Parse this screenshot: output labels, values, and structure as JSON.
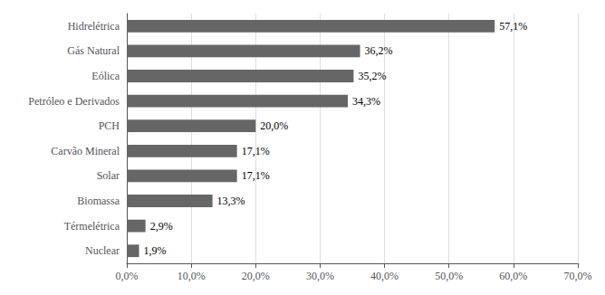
{
  "chart_data": {
    "type": "bar",
    "orientation": "horizontal",
    "categories": [
      "Nuclear",
      "Térmelétrica",
      "Biomassa",
      "Solar",
      "Carvão Mineral",
      "PCH",
      "Petróleo e Derivados",
      "Eólica",
      "Gás Natural",
      "Hidrelétrica"
    ],
    "values": [
      1.9,
      2.9,
      13.3,
      17.1,
      17.1,
      20.0,
      34.3,
      35.2,
      36.2,
      57.1
    ],
    "value_labels": [
      "1,9%",
      "2,9%",
      "13,3%",
      "17,1%",
      "17,1%",
      "20,0%",
      "34,3%",
      "35,2%",
      "36,2%",
      "57,1%"
    ],
    "data_labels": true,
    "color": "#666666",
    "xlim": [
      0,
      70
    ],
    "xticks": [
      {
        "value": 0,
        "label": "0,0%"
      },
      {
        "value": 10,
        "label": "10,0%"
      },
      {
        "value": 20,
        "label": "20,0%"
      },
      {
        "value": 30,
        "label": "30,0%"
      },
      {
        "value": 40,
        "label": "40,0%"
      },
      {
        "value": 50,
        "label": "50,0%"
      },
      {
        "value": 60,
        "label": "60,0%"
      },
      {
        "value": 70,
        "label": "70,0%"
      }
    ],
    "grid": true
  }
}
